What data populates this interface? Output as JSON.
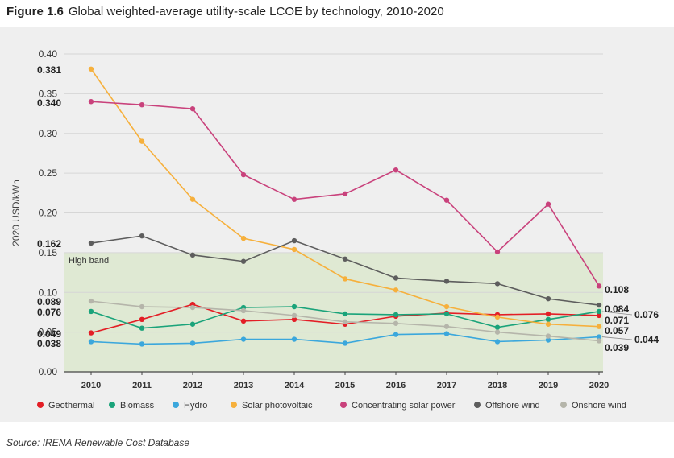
{
  "figure_label": "Figure 1.6",
  "figure_title": "Global weighted-average utility-scale LCOE by technology, 2010-2020",
  "source": "Source: IRENA Renewable Cost Database",
  "chart_data": {
    "type": "line",
    "title": "Global weighted-average utility-scale LCOE by technology, 2010-2020",
    "xlabel": "",
    "ylabel": "2020 USD/kWh",
    "ylim": [
      0,
      0.4
    ],
    "yticks": [
      "0.00",
      "0.05",
      "0.10",
      "0.15",
      "0.20",
      "0.25",
      "0.30",
      "0.35",
      "0.40"
    ],
    "x": [
      2010,
      2011,
      2012,
      2013,
      2014,
      2015,
      2016,
      2017,
      2018,
      2019,
      2020
    ],
    "band": {
      "label": "High band",
      "from": 0.0,
      "to": 0.15
    },
    "legend_position": "bottom",
    "series": [
      {
        "name": "Geothermal",
        "color": "#e31e26",
        "values": [
          0.049,
          0.066,
          0.085,
          0.064,
          0.066,
          0.06,
          0.07,
          0.074,
          0.072,
          0.073,
          0.071
        ],
        "start_label": "0.049",
        "end_label": "0.071"
      },
      {
        "name": "Biomass",
        "color": "#1aa37a",
        "values": [
          0.076,
          0.055,
          0.06,
          0.081,
          0.082,
          0.073,
          0.072,
          0.073,
          0.056,
          0.066,
          0.076
        ],
        "start_label": "0.076",
        "end_label": "0.076"
      },
      {
        "name": "Hydro",
        "color": "#3ba7dc",
        "values": [
          0.038,
          0.035,
          0.036,
          0.041,
          0.041,
          0.036,
          0.047,
          0.048,
          0.038,
          0.04,
          0.044
        ],
        "start_label": "0.038",
        "end_label": "0.044"
      },
      {
        "name": "Solar photovoltaic",
        "color": "#f6b03c",
        "values": [
          0.381,
          0.29,
          0.217,
          0.168,
          0.154,
          0.117,
          0.103,
          0.082,
          0.069,
          0.06,
          0.057
        ],
        "start_label": "0.381",
        "end_label": "0.057"
      },
      {
        "name": "Concentrating solar power",
        "color": "#c9427c",
        "values": [
          0.34,
          0.336,
          0.331,
          0.248,
          0.217,
          0.224,
          0.254,
          0.216,
          0.151,
          0.211,
          0.108
        ],
        "start_label": "0.340",
        "end_label": "0.108"
      },
      {
        "name": "Offshore wind",
        "color": "#5d5d5d",
        "values": [
          0.162,
          0.171,
          0.147,
          0.139,
          0.165,
          0.142,
          0.118,
          0.114,
          0.111,
          0.092,
          0.084
        ],
        "start_label": "0.162",
        "end_label": "0.084"
      },
      {
        "name": "Onshore wind",
        "color": "#b5b5aa",
        "values": [
          0.089,
          0.082,
          0.081,
          0.077,
          0.071,
          0.063,
          0.061,
          0.057,
          0.05,
          0.045,
          0.039
        ],
        "start_label": "0.089",
        "end_label": "0.039"
      }
    ]
  }
}
